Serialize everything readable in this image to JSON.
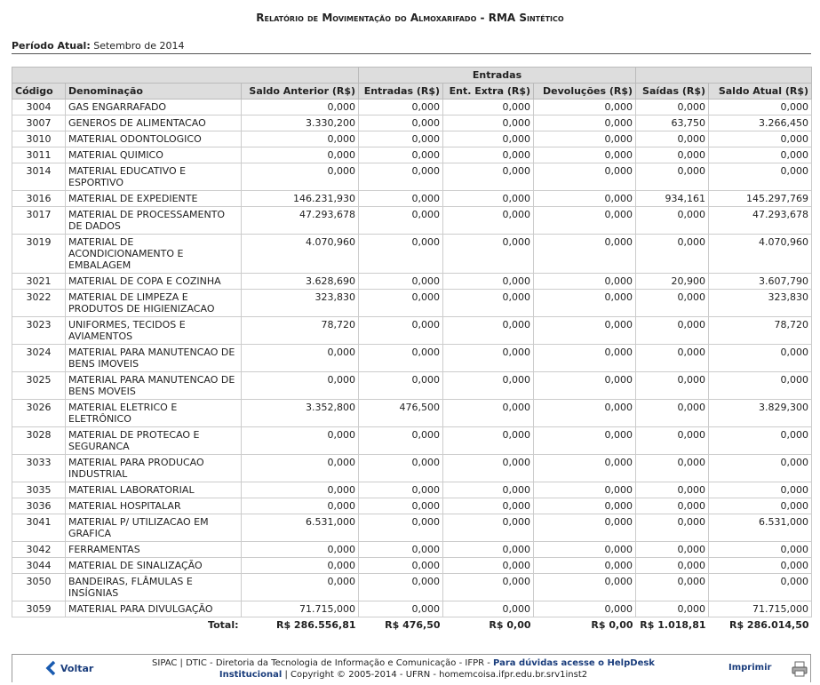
{
  "header": {
    "title": "Relatório de Movimentação do Almoxarifado - RMA Sintético",
    "period_label": "Período Atual:",
    "period_value": "Setembro de 2014"
  },
  "table": {
    "group_header": "Entradas",
    "columns": [
      "Código",
      "Denominação",
      "Saldo Anterior (R$)",
      "Entradas (R$)",
      "Ent. Extra (R$)",
      "Devoluções (R$)",
      "Saídas (R$)",
      "Saldo Atual (R$)"
    ],
    "rows": [
      [
        "3004",
        "GAS ENGARRAFADO",
        "0,000",
        "0,000",
        "0,000",
        "0,000",
        "0,000",
        "0,000"
      ],
      [
        "3007",
        "GENEROS DE ALIMENTACAO",
        "3.330,200",
        "0,000",
        "0,000",
        "0,000",
        "63,750",
        "3.266,450"
      ],
      [
        "3010",
        "MATERIAL ODONTOLOGICO",
        "0,000",
        "0,000",
        "0,000",
        "0,000",
        "0,000",
        "0,000"
      ],
      [
        "3011",
        "MATERIAL QUIMICO",
        "0,000",
        "0,000",
        "0,000",
        "0,000",
        "0,000",
        "0,000"
      ],
      [
        "3014",
        "MATERIAL EDUCATIVO E ESPORTIVO",
        "0,000",
        "0,000",
        "0,000",
        "0,000",
        "0,000",
        "0,000"
      ],
      [
        "3016",
        "MATERIAL DE EXPEDIENTE",
        "146.231,930",
        "0,000",
        "0,000",
        "0,000",
        "934,161",
        "145.297,769"
      ],
      [
        "3017",
        "MATERIAL DE PROCESSAMENTO DE DADOS",
        "47.293,678",
        "0,000",
        "0,000",
        "0,000",
        "0,000",
        "47.293,678"
      ],
      [
        "3019",
        "MATERIAL DE ACONDICIONAMENTO E EMBALAGEM",
        "4.070,960",
        "0,000",
        "0,000",
        "0,000",
        "0,000",
        "4.070,960"
      ],
      [
        "3021",
        "MATERIAL DE COPA E COZINHA",
        "3.628,690",
        "0,000",
        "0,000",
        "0,000",
        "20,900",
        "3.607,790"
      ],
      [
        "3022",
        "MATERIAL DE LIMPEZA E PRODUTOS DE HIGIENIZACAO",
        "323,830",
        "0,000",
        "0,000",
        "0,000",
        "0,000",
        "323,830"
      ],
      [
        "3023",
        "UNIFORMES, TECIDOS E AVIAMENTOS",
        "78,720",
        "0,000",
        "0,000",
        "0,000",
        "0,000",
        "78,720"
      ],
      [
        "3024",
        "MATERIAL PARA MANUTENCAO DE BENS IMOVEIS",
        "0,000",
        "0,000",
        "0,000",
        "0,000",
        "0,000",
        "0,000"
      ],
      [
        "3025",
        "MATERIAL PARA MANUTENCAO DE BENS MOVEIS",
        "0,000",
        "0,000",
        "0,000",
        "0,000",
        "0,000",
        "0,000"
      ],
      [
        "3026",
        "MATERIAL ELETRICO E ELETRÔNICO",
        "3.352,800",
        "476,500",
        "0,000",
        "0,000",
        "0,000",
        "3.829,300"
      ],
      [
        "3028",
        "MATERIAL DE PROTECAO E SEGURANCA",
        "0,000",
        "0,000",
        "0,000",
        "0,000",
        "0,000",
        "0,000"
      ],
      [
        "3033",
        "MATERIAL PARA PRODUCAO INDUSTRIAL",
        "0,000",
        "0,000",
        "0,000",
        "0,000",
        "0,000",
        "0,000"
      ],
      [
        "3035",
        "MATERIAL LABORATORIAL",
        "0,000",
        "0,000",
        "0,000",
        "0,000",
        "0,000",
        "0,000"
      ],
      [
        "3036",
        "MATERIAL HOSPITALAR",
        "0,000",
        "0,000",
        "0,000",
        "0,000",
        "0,000",
        "0,000"
      ],
      [
        "3041",
        "MATERIAL P/ UTILIZACAO EM GRAFICA",
        "6.531,000",
        "0,000",
        "0,000",
        "0,000",
        "0,000",
        "6.531,000"
      ],
      [
        "3042",
        "FERRAMENTAS",
        "0,000",
        "0,000",
        "0,000",
        "0,000",
        "0,000",
        "0,000"
      ],
      [
        "3044",
        "MATERIAL DE SINALIZAÇÃO",
        "0,000",
        "0,000",
        "0,000",
        "0,000",
        "0,000",
        "0,000"
      ],
      [
        "3050",
        "BANDEIRAS, FLÂMULAS E INSÍGNIAS",
        "0,000",
        "0,000",
        "0,000",
        "0,000",
        "0,000",
        "0,000"
      ],
      [
        "3059",
        "MATERIAL PARA DIVULGAÇÃO",
        "71.715,000",
        "0,000",
        "0,000",
        "0,000",
        "0,000",
        "71.715,000"
      ]
    ],
    "total": {
      "label": "Total:",
      "values": [
        "R$ 286.556,81",
        "R$ 476,50",
        "R$ 0,00",
        "R$ 0,00",
        "R$ 1.018,81",
        "R$ 286.014,50"
      ]
    }
  },
  "footer": {
    "back": "Voltar",
    "text1": "SIPAC | DTIC - Diretoria da Tecnologia de Informação e Comunicação - IFPR - ",
    "help_link": "Para dúvidas acesse o HelpDesk Institucional",
    "text2": " | Copyright © 2005-2014 - UFRN - homemcoisa.ifpr.edu.br.srv1inst2",
    "print": "Imprimir"
  }
}
